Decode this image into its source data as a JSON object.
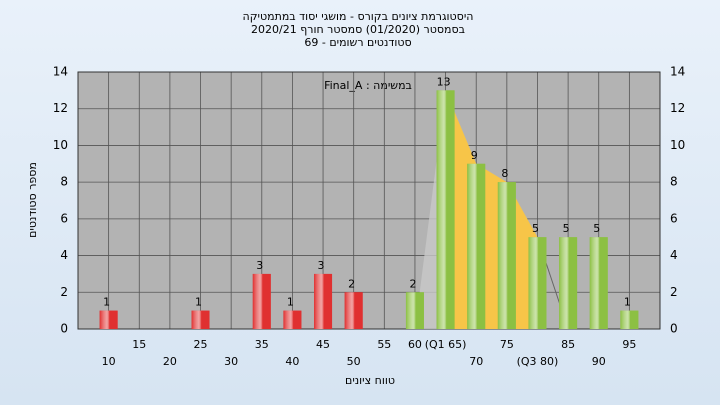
{
  "chart_data": {
    "type": "bar",
    "title": "היסטוגרמת ציונים בקורס - מושגי יסוד במתמטיקה",
    "subtitle": [
      "בסמסטר  (01/2020)  סמסטר חורף  2020/21",
      "סטודנטים רשומים - 69"
    ],
    "annotation": "במשימה : Final_A",
    "x_label": "טווח ציונים",
    "y_label": "מספר סטודנטים",
    "categories": [
      "10",
      "15",
      "20",
      "25",
      "30",
      "35",
      "40",
      "45",
      "50",
      "55",
      "60",
      "(Q1 65)",
      "70",
      "75",
      "(Q3 80)",
      "85",
      "90",
      "95"
    ],
    "values": [
      1,
      0,
      0,
      1,
      0,
      3,
      1,
      3,
      2,
      0,
      2,
      13,
      9,
      8,
      5,
      5,
      5,
      1
    ],
    "colors": [
      "#e03030",
      "#e03030",
      "#e03030",
      "#e03030",
      "#e03030",
      "#e03030",
      "#e03030",
      "#e03030",
      "#e03030",
      "#e03030",
      "#8cc043",
      "#8cc043",
      "#8cc043",
      "#8cc043",
      "#8cc043",
      "#8cc043",
      "#8cc043",
      "#8cc043"
    ],
    "quartile_range_color": "#f7c548",
    "ylim": [
      0,
      14
    ],
    "yticks": [
      0,
      2,
      4,
      6,
      8,
      10,
      12,
      14
    ],
    "grid": true
  }
}
